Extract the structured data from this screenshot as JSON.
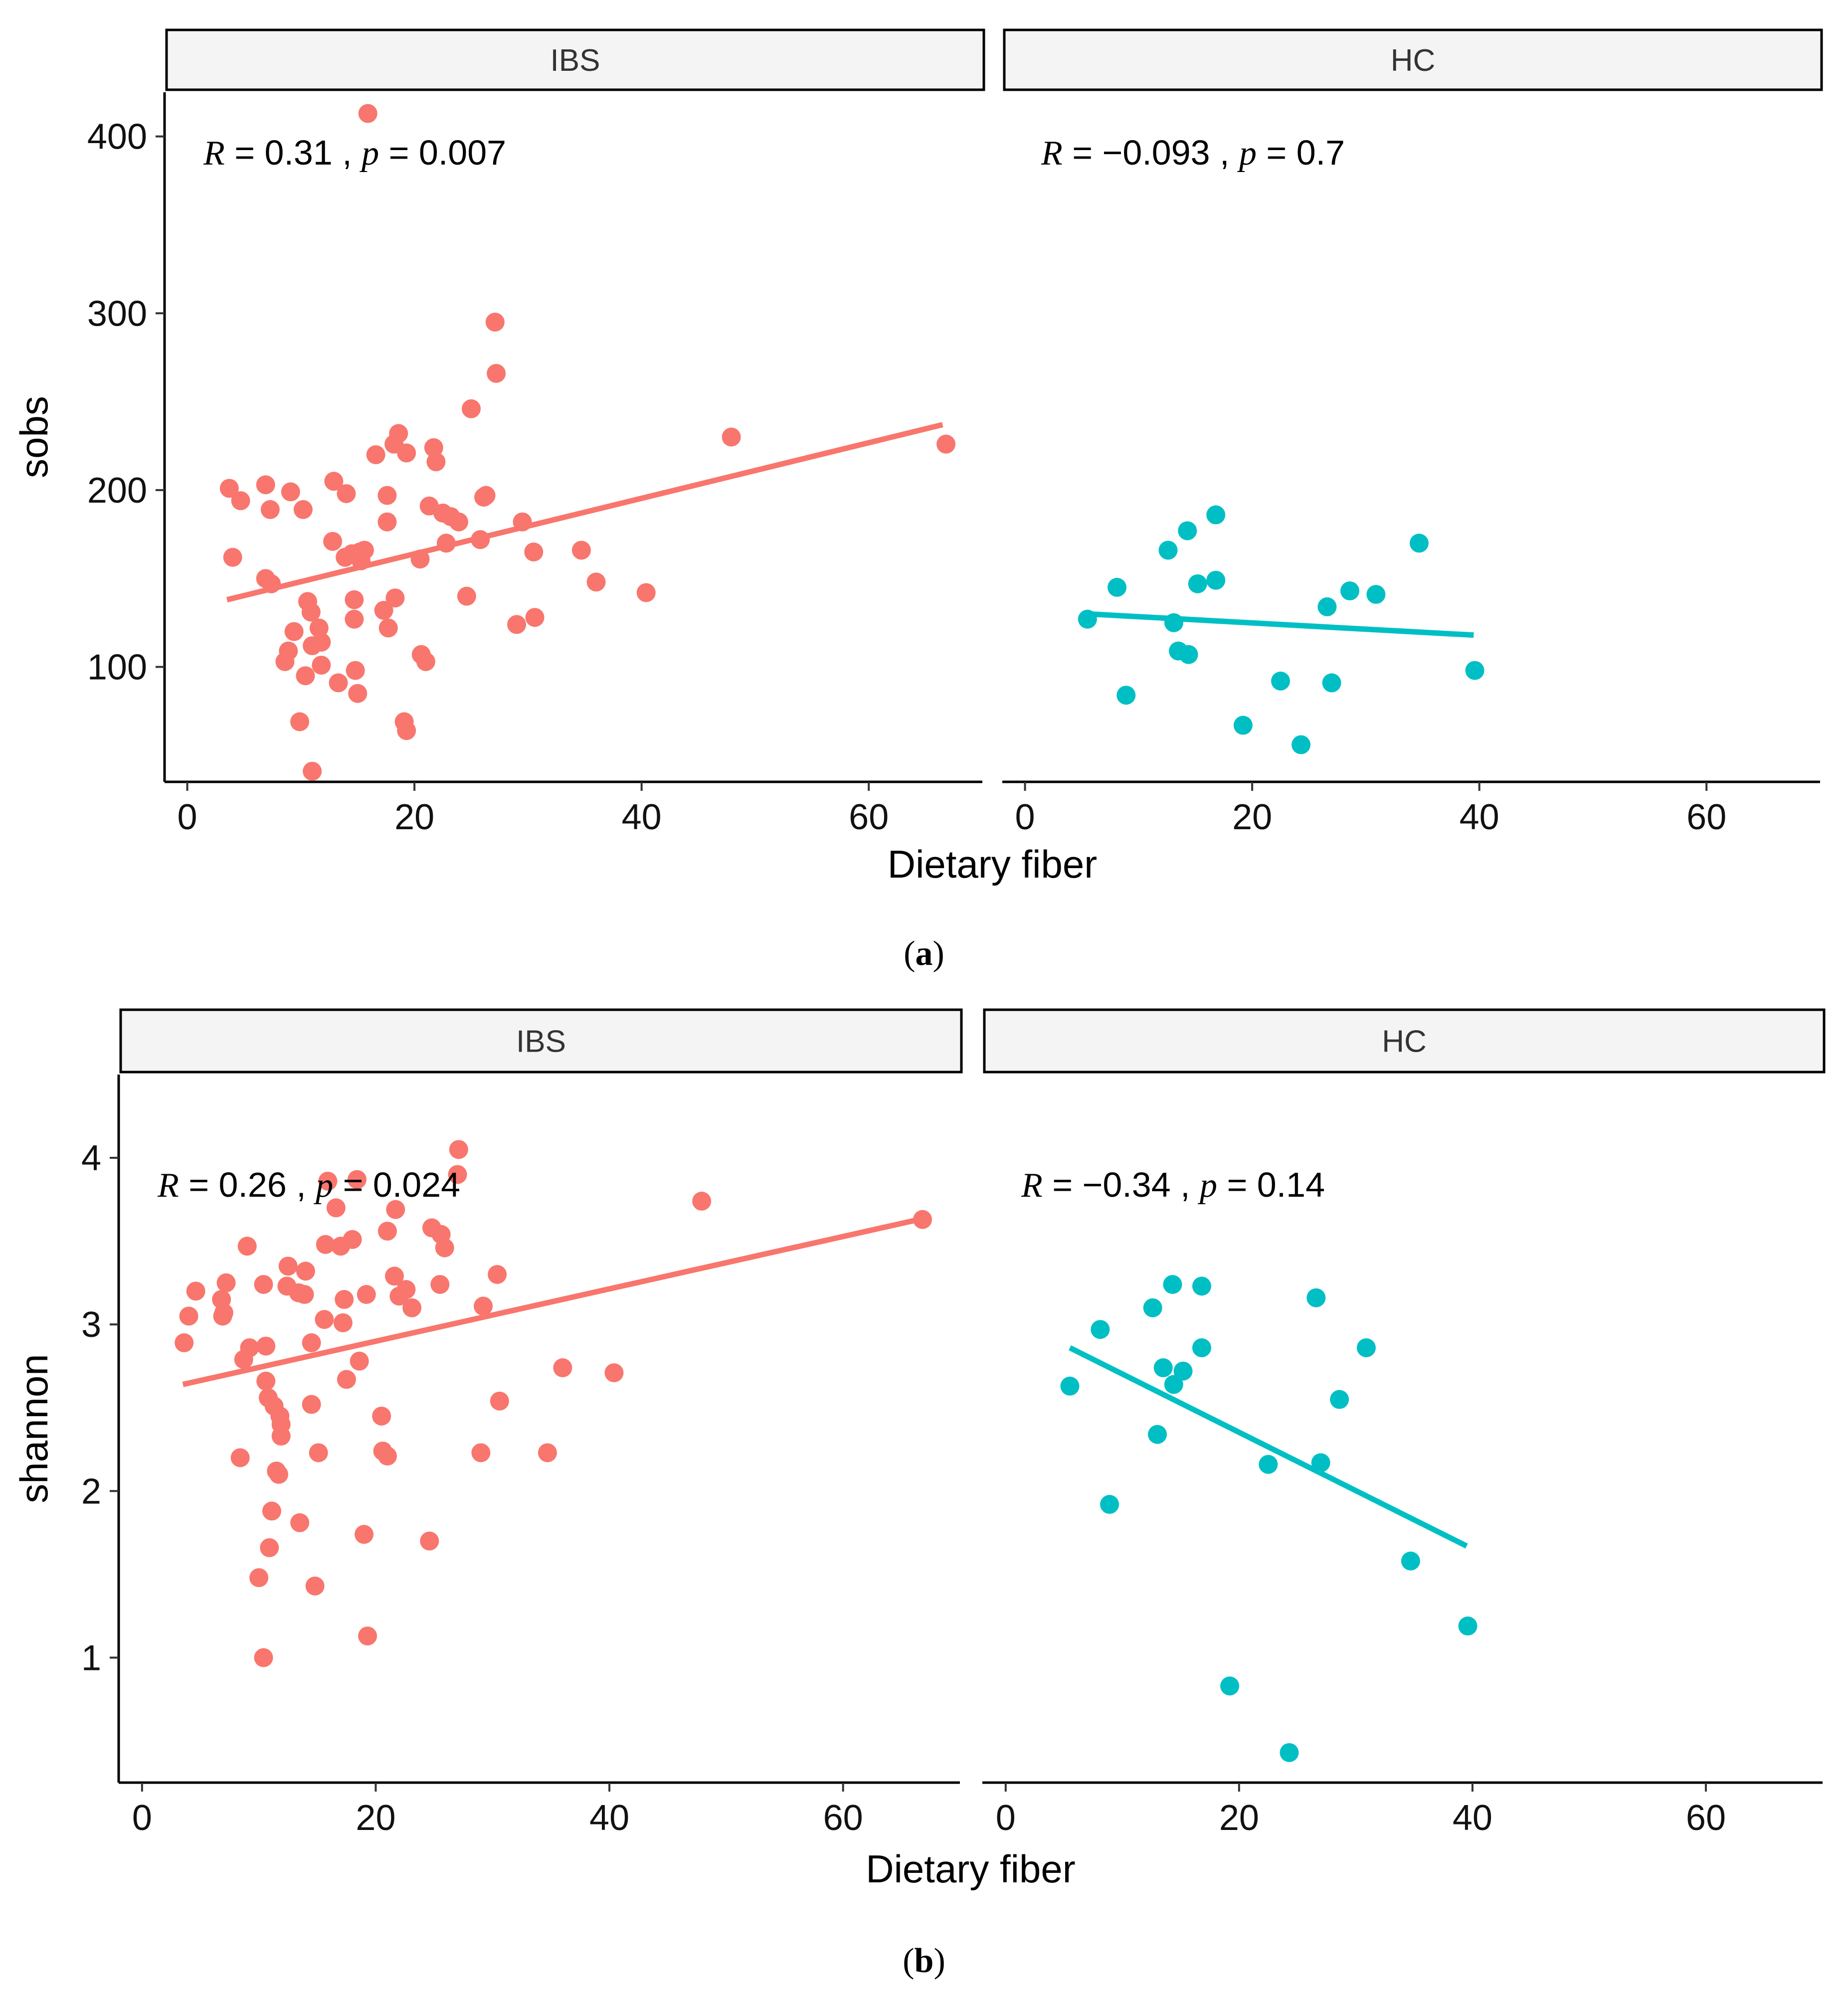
{
  "figure": {
    "x_label": "Dietary fiber",
    "panel_labels": [
      "a",
      "b"
    ],
    "x_ticks": [
      "0",
      "20",
      "40",
      "60"
    ],
    "colors": {
      "IBS": "#f8766d",
      "HC": "#00bfc4",
      "strip_fill": "#f4f4f4"
    }
  },
  "chart_data": [
    {
      "type": "scatter",
      "panel": "a",
      "ylabel": "sobs",
      "xlabel": "Dietary fiber",
      "xlim": [
        -2,
        70
      ],
      "ylim": [
        35,
        425
      ],
      "x_ticks": [
        0,
        20,
        40,
        60
      ],
      "y_ticks": [
        100,
        200,
        300,
        400
      ],
      "facets": [
        {
          "name": "IBS",
          "color": "#f8766d",
          "stat": {
            "R": "0.31",
            "p": "0.007"
          },
          "fit": {
            "x0": 3.5,
            "y0": 138,
            "x1": 66.5,
            "y1": 237
          },
          "points": [
            [
              15.9,
              413
            ],
            [
              27.1,
              295
            ],
            [
              27.2,
              266
            ],
            [
              25.0,
              246
            ],
            [
              47.9,
              230
            ],
            [
              66.8,
              226
            ],
            [
              18.6,
              232
            ],
            [
              18.2,
              226
            ],
            [
              19.3,
              221
            ],
            [
              16.6,
              220
            ],
            [
              21.7,
              224
            ],
            [
              21.9,
              216
            ],
            [
              3.7,
              201
            ],
            [
              6.9,
              203
            ],
            [
              9.1,
              199
            ],
            [
              14.0,
              198
            ],
            [
              17.6,
              197
            ],
            [
              26.1,
              196
            ],
            [
              26.3,
              197
            ],
            [
              4.7,
              194
            ],
            [
              7.3,
              189
            ],
            [
              10.2,
              189
            ],
            [
              21.3,
              191
            ],
            [
              22.5,
              187
            ],
            [
              23.2,
              185
            ],
            [
              23.9,
              182
            ],
            [
              17.6,
              182
            ],
            [
              29.5,
              182
            ],
            [
              12.9,
              205
            ],
            [
              12.8,
              171
            ],
            [
              22.8,
              170
            ],
            [
              25.8,
              172
            ],
            [
              15.2,
              165
            ],
            [
              15.6,
              166
            ],
            [
              13.9,
              162
            ],
            [
              14.5,
              164
            ],
            [
              15.3,
              160
            ],
            [
              20.5,
              161
            ],
            [
              30.5,
              165
            ],
            [
              34.7,
              166
            ],
            [
              4.0,
              162
            ],
            [
              6.9,
              150
            ],
            [
              7.4,
              147
            ],
            [
              14.7,
              138
            ],
            [
              10.6,
              137
            ],
            [
              18.3,
              139
            ],
            [
              24.6,
              140
            ],
            [
              36.0,
              148
            ],
            [
              40.4,
              142
            ],
            [
              10.9,
              131
            ],
            [
              14.7,
              127
            ],
            [
              17.3,
              132
            ],
            [
              17.7,
              122
            ],
            [
              11.6,
              122
            ],
            [
              11.8,
              114
            ],
            [
              29.0,
              124
            ],
            [
              30.6,
              128
            ],
            [
              9.4,
              120
            ],
            [
              11.0,
              112
            ],
            [
              8.9,
              109
            ],
            [
              8.6,
              103
            ],
            [
              20.6,
              107
            ],
            [
              21.0,
              103
            ],
            [
              11.8,
              101
            ],
            [
              10.4,
              95
            ],
            [
              14.8,
              98
            ],
            [
              13.3,
              91
            ],
            [
              15.0,
              85
            ],
            [
              9.9,
              69
            ],
            [
              19.1,
              69
            ],
            [
              19.3,
              64
            ],
            [
              11.0,
              41
            ]
          ]
        },
        {
          "name": "HC",
          "color": "#00bfc4",
          "stat": {
            "R": "−0.093",
            "p": "0.7"
          },
          "fit": {
            "x0": 5.5,
            "y0": 130,
            "x1": 39.5,
            "y1": 118
          },
          "points": [
            [
              5.5,
              127
            ],
            [
              8.1,
              145
            ],
            [
              8.9,
              84
            ],
            [
              12.6,
              166
            ],
            [
              13.1,
              125
            ],
            [
              13.5,
              109
            ],
            [
              14.3,
              177
            ],
            [
              14.4,
              107
            ],
            [
              15.2,
              147
            ],
            [
              16.8,
              186
            ],
            [
              16.8,
              149
            ],
            [
              19.2,
              67
            ],
            [
              22.5,
              92
            ],
            [
              24.3,
              56
            ],
            [
              26.6,
              134
            ],
            [
              27.0,
              91
            ],
            [
              28.6,
              143
            ],
            [
              30.9,
              141
            ],
            [
              34.7,
              170
            ],
            [
              39.6,
              98
            ]
          ]
        }
      ]
    },
    {
      "type": "scatter",
      "panel": "b",
      "ylabel": "shannon",
      "xlabel": "Dietary fiber",
      "xlim": [
        -2,
        70
      ],
      "ylim": [
        0.25,
        4.5
      ],
      "x_ticks": [
        0,
        20,
        40,
        60
      ],
      "y_ticks": [
        1,
        2,
        3,
        4
      ],
      "facets": [
        {
          "name": "IBS",
          "color": "#f8766d",
          "stat": {
            "R": "0.26",
            "p": "0.024"
          },
          "fit": {
            "x0": 3.5,
            "y0": 2.64,
            "x1": 66.5,
            "y1": 3.63
          },
          "points": [
            [
              27.1,
              4.05
            ],
            [
              15.9,
              3.86
            ],
            [
              18.4,
              3.87
            ],
            [
              27.0,
              3.9
            ],
            [
              47.9,
              3.74
            ],
            [
              66.8,
              3.63
            ],
            [
              16.6,
              3.7
            ],
            [
              21.7,
              3.69
            ],
            [
              21.0,
              3.56
            ],
            [
              24.8,
              3.58
            ],
            [
              25.6,
              3.54
            ],
            [
              15.7,
              3.48
            ],
            [
              17.0,
              3.47
            ],
            [
              18.0,
              3.51
            ],
            [
              25.9,
              3.46
            ],
            [
              9.0,
              3.47
            ],
            [
              12.5,
              3.35
            ],
            [
              14.0,
              3.32
            ],
            [
              21.6,
              3.29
            ],
            [
              30.4,
              3.3
            ],
            [
              7.2,
              3.25
            ],
            [
              10.4,
              3.24
            ],
            [
              12.4,
              3.23
            ],
            [
              13.4,
              3.19
            ],
            [
              13.9,
              3.18
            ],
            [
              4.6,
              3.2
            ],
            [
              6.8,
              3.15
            ],
            [
              17.3,
              3.15
            ],
            [
              19.2,
              3.18
            ],
            [
              22.0,
              3.17
            ],
            [
              22.6,
              3.21
            ],
            [
              23.1,
              3.1
            ],
            [
              25.5,
              3.24
            ],
            [
              29.2,
              3.11
            ],
            [
              4.0,
              3.05
            ],
            [
              7.0,
              3.07
            ],
            [
              6.9,
              3.05
            ],
            [
              15.6,
              3.03
            ],
            [
              17.2,
              3.01
            ],
            [
              3.6,
              2.89
            ],
            [
              9.2,
              2.86
            ],
            [
              10.6,
              2.87
            ],
            [
              14.5,
              2.89
            ],
            [
              8.7,
              2.79
            ],
            [
              18.6,
              2.78
            ],
            [
              10.6,
              2.66
            ],
            [
              17.5,
              2.67
            ],
            [
              36.0,
              2.74
            ],
            [
              40.4,
              2.71
            ],
            [
              10.8,
              2.56
            ],
            [
              11.3,
              2.51
            ],
            [
              14.5,
              2.52
            ],
            [
              11.8,
              2.45
            ],
            [
              11.9,
              2.4
            ],
            [
              20.5,
              2.45
            ],
            [
              30.6,
              2.54
            ],
            [
              11.9,
              2.33
            ],
            [
              15.1,
              2.23
            ],
            [
              20.6,
              2.24
            ],
            [
              21.0,
              2.21
            ],
            [
              29.0,
              2.23
            ],
            [
              34.7,
              2.23
            ],
            [
              8.4,
              2.2
            ],
            [
              11.5,
              2.12
            ],
            [
              11.7,
              2.1
            ],
            [
              11.1,
              1.88
            ],
            [
              13.5,
              1.81
            ],
            [
              19.0,
              1.74
            ],
            [
              24.6,
              1.7
            ],
            [
              10.9,
              1.66
            ],
            [
              10.0,
              1.48
            ],
            [
              14.8,
              1.43
            ],
            [
              19.3,
              1.13
            ],
            [
              10.4,
              1.0
            ]
          ]
        },
        {
          "name": "HC",
          "color": "#00bfc4",
          "stat": {
            "R": "−0.34",
            "p": "0.14"
          },
          "fit": {
            "x0": 5.5,
            "y0": 2.86,
            "x1": 39.5,
            "y1": 1.67
          },
          "points": [
            [
              5.5,
              2.63
            ],
            [
              8.1,
              2.97
            ],
            [
              8.9,
              1.92
            ],
            [
              12.6,
              3.1
            ],
            [
              13.0,
              2.34
            ],
            [
              13.5,
              2.74
            ],
            [
              14.3,
              3.24
            ],
            [
              14.4,
              2.64
            ],
            [
              15.2,
              2.72
            ],
            [
              16.8,
              2.86
            ],
            [
              16.8,
              3.23
            ],
            [
              19.2,
              0.83
            ],
            [
              22.5,
              2.16
            ],
            [
              24.3,
              0.43
            ],
            [
              26.6,
              3.16
            ],
            [
              27.0,
              2.17
            ],
            [
              28.6,
              2.55
            ],
            [
              30.9,
              2.86
            ],
            [
              34.7,
              1.58
            ],
            [
              39.6,
              1.19
            ]
          ]
        }
      ]
    }
  ]
}
